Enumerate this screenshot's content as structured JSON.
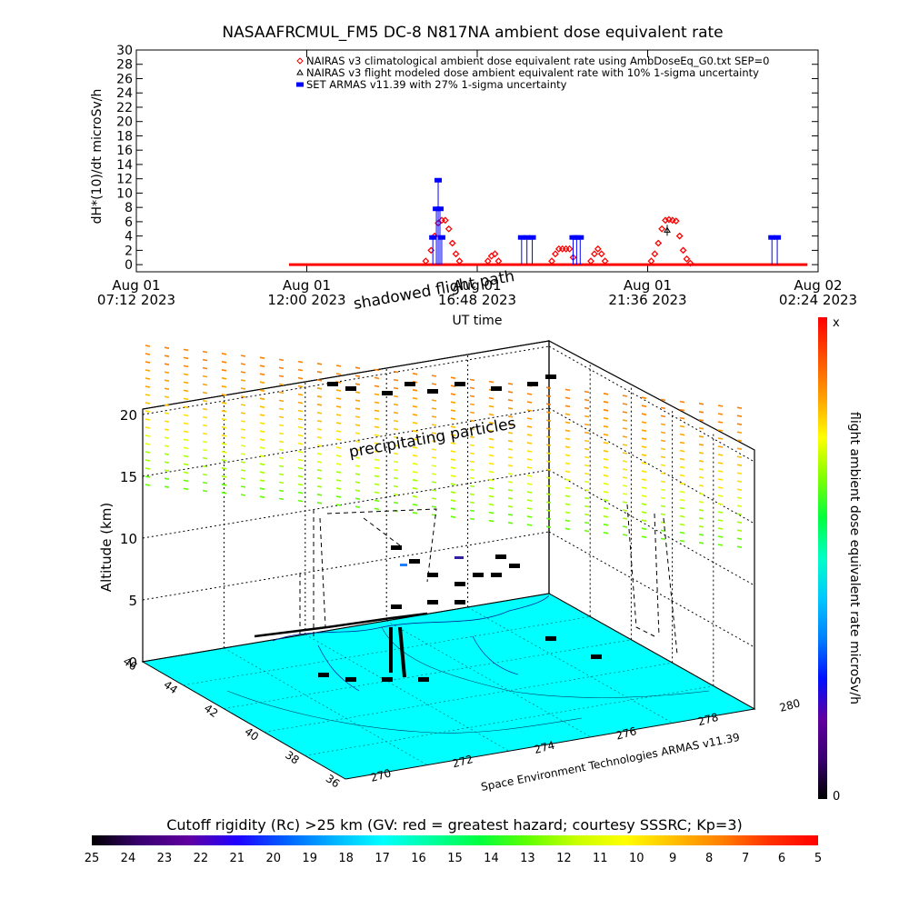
{
  "chart_data": [
    {
      "type": "scatter",
      "title": "NASAAFRCMUL_FM5 DC-8    N817NA ambient dose equivalent rate",
      "xlabel": "UT time",
      "ylabel": "dH*(10)/dt microSv/h",
      "ylim": [
        -1,
        30
      ],
      "yticks": [
        0,
        2,
        4,
        6,
        8,
        10,
        12,
        14,
        16,
        18,
        20,
        22,
        24,
        26,
        28,
        30
      ],
      "xlim": [
        0,
        19.2
      ],
      "xticks": [
        {
          "x": 0,
          "line1": "Aug 01",
          "line2": "07:12 2023"
        },
        {
          "x": 4.8,
          "line1": "Aug 01",
          "line2": "12:00 2023"
        },
        {
          "x": 9.6,
          "line1": "Aug 01",
          "line2": "16:48 2023"
        },
        {
          "x": 14.4,
          "line1": "Aug 01",
          "line2": "21:36 2023"
        },
        {
          "x": 19.2,
          "line1": "Aug 02",
          "line2": "02:24 2023"
        }
      ],
      "legend_position": "top-right",
      "legend": [
        {
          "label": "NAIRAS v3 climatological ambient dose equivalent rate using AmbDoseEq_G0.txt SEP=0",
          "symbol": "diamond",
          "color": "#ff0000"
        },
        {
          "label": "NAIRAS v3 flight modeled dose ambient equivalent rate with 10% 1-sigma uncertainty",
          "symbol": "triangle",
          "color": "#000000"
        },
        {
          "label": "SET ARMAS v11.39 with 27% 1-sigma uncertainty",
          "symbol": "square",
          "color": "#0000ff"
        }
      ],
      "series": [
        {
          "name": "NAIRAS v3 climatological ambient dose equivalent rate using AmbDoseEq_G0.txt SEP=0",
          "color": "#ff0000",
          "baseline": {
            "x_start": 4.3,
            "x_end": 18.9,
            "y": 0
          },
          "points": [
            [
              8.15,
              0.5
            ],
            [
              8.3,
              2
            ],
            [
              8.4,
              4
            ],
            [
              8.5,
              5.8
            ],
            [
              8.6,
              6.2
            ],
            [
              8.7,
              6.2
            ],
            [
              8.8,
              5
            ],
            [
              8.9,
              3
            ],
            [
              9.0,
              1.5
            ],
            [
              9.1,
              0.5
            ],
            [
              9.9,
              0.5
            ],
            [
              10.0,
              1.2
            ],
            [
              10.1,
              1.5
            ],
            [
              10.2,
              0.5
            ],
            [
              11.7,
              0.5
            ],
            [
              11.8,
              1.5
            ],
            [
              11.9,
              2.2
            ],
            [
              12.0,
              2.2
            ],
            [
              12.1,
              2.2
            ],
            [
              12.2,
              2.2
            ],
            [
              12.3,
              1
            ],
            [
              12.8,
              0.5
            ],
            [
              12.9,
              1.5
            ],
            [
              13.0,
              2.2
            ],
            [
              13.1,
              1.5
            ],
            [
              13.2,
              0.5
            ],
            [
              14.5,
              0.5
            ],
            [
              14.6,
              1.5
            ],
            [
              14.7,
              3
            ],
            [
              14.8,
              5
            ],
            [
              14.9,
              6.2
            ],
            [
              15.0,
              6.3
            ],
            [
              15.1,
              6.2
            ],
            [
              15.2,
              6.1
            ],
            [
              15.3,
              4
            ],
            [
              15.4,
              2
            ],
            [
              15.5,
              0.8
            ],
            [
              15.6,
              0.2
            ]
          ]
        },
        {
          "name": "NAIRAS v3 flight modeled dose ambient equivalent rate with 10% 1-sigma uncertainty",
          "color": "#000000",
          "points": [
            [
              14.95,
              4.8
            ]
          ]
        },
        {
          "name": "SET ARMAS v11.39 with 27% 1-sigma uncertainty",
          "color": "#0000ff",
          "line_at_zero": true,
          "points": [
            [
              8.35,
              3.8
            ],
            [
              8.45,
              7.8
            ],
            [
              8.5,
              11.8
            ],
            [
              8.55,
              7.8
            ],
            [
              8.6,
              3.8
            ],
            [
              10.85,
              3.8
            ],
            [
              11.0,
              3.8
            ],
            [
              11.15,
              3.8
            ],
            [
              12.3,
              3.8
            ],
            [
              12.4,
              3.8
            ],
            [
              12.5,
              3.8
            ],
            [
              17.9,
              3.8
            ],
            [
              18.05,
              3.8
            ]
          ]
        }
      ]
    },
    {
      "type": "scatter",
      "title": "",
      "zlabel": "Altitude (km)",
      "zticks": [
        0,
        5,
        10,
        15,
        20
      ],
      "lat_ticks": [
        36,
        38,
        40,
        42,
        44,
        46
      ],
      "lon_ticks": [
        270,
        272,
        274,
        276,
        278,
        280
      ],
      "annotations": [
        "shadowed flight path",
        "precipitating particles"
      ],
      "credit": "Space Environment Technologies ARMAS v11.39",
      "floor_color": "#00ffff",
      "flight_track_color": "#000000"
    },
    {
      "type": "heatmap",
      "title": "flight ambient dose equivalent rate microSv/h",
      "orientation": "vertical",
      "top_label": "x",
      "bottom_label": "0",
      "colors": [
        "#000000",
        "#3a0070",
        "#6000a0",
        "#0010ff",
        "#0080ff",
        "#00c8ff",
        "#00ffc8",
        "#00ff40",
        "#80ff00",
        "#ffff00",
        "#ffa000",
        "#ff5000",
        "#ff0000"
      ]
    },
    {
      "type": "heatmap",
      "title": "Cutoff rigidity (Rc) >25 km (GV: red = greatest hazard; courtesy SSSRC; Kp=3)",
      "orientation": "horizontal",
      "tick_labels": [
        "25",
        "24",
        "23",
        "22",
        "21",
        "20",
        "19",
        "18",
        "17",
        "16",
        "15",
        "14",
        "13",
        "12",
        "11",
        "10",
        "9",
        "8",
        "7",
        "6",
        "5"
      ],
      "colors": [
        "#000000",
        "#3a0070",
        "#6000a0",
        "#2000ff",
        "#0060ff",
        "#00b4ff",
        "#00ffff",
        "#00ffa0",
        "#00ff40",
        "#60ff00",
        "#c8ff00",
        "#ffff00",
        "#ffc000",
        "#ff8000",
        "#ff3000",
        "#ff0000"
      ]
    }
  ]
}
